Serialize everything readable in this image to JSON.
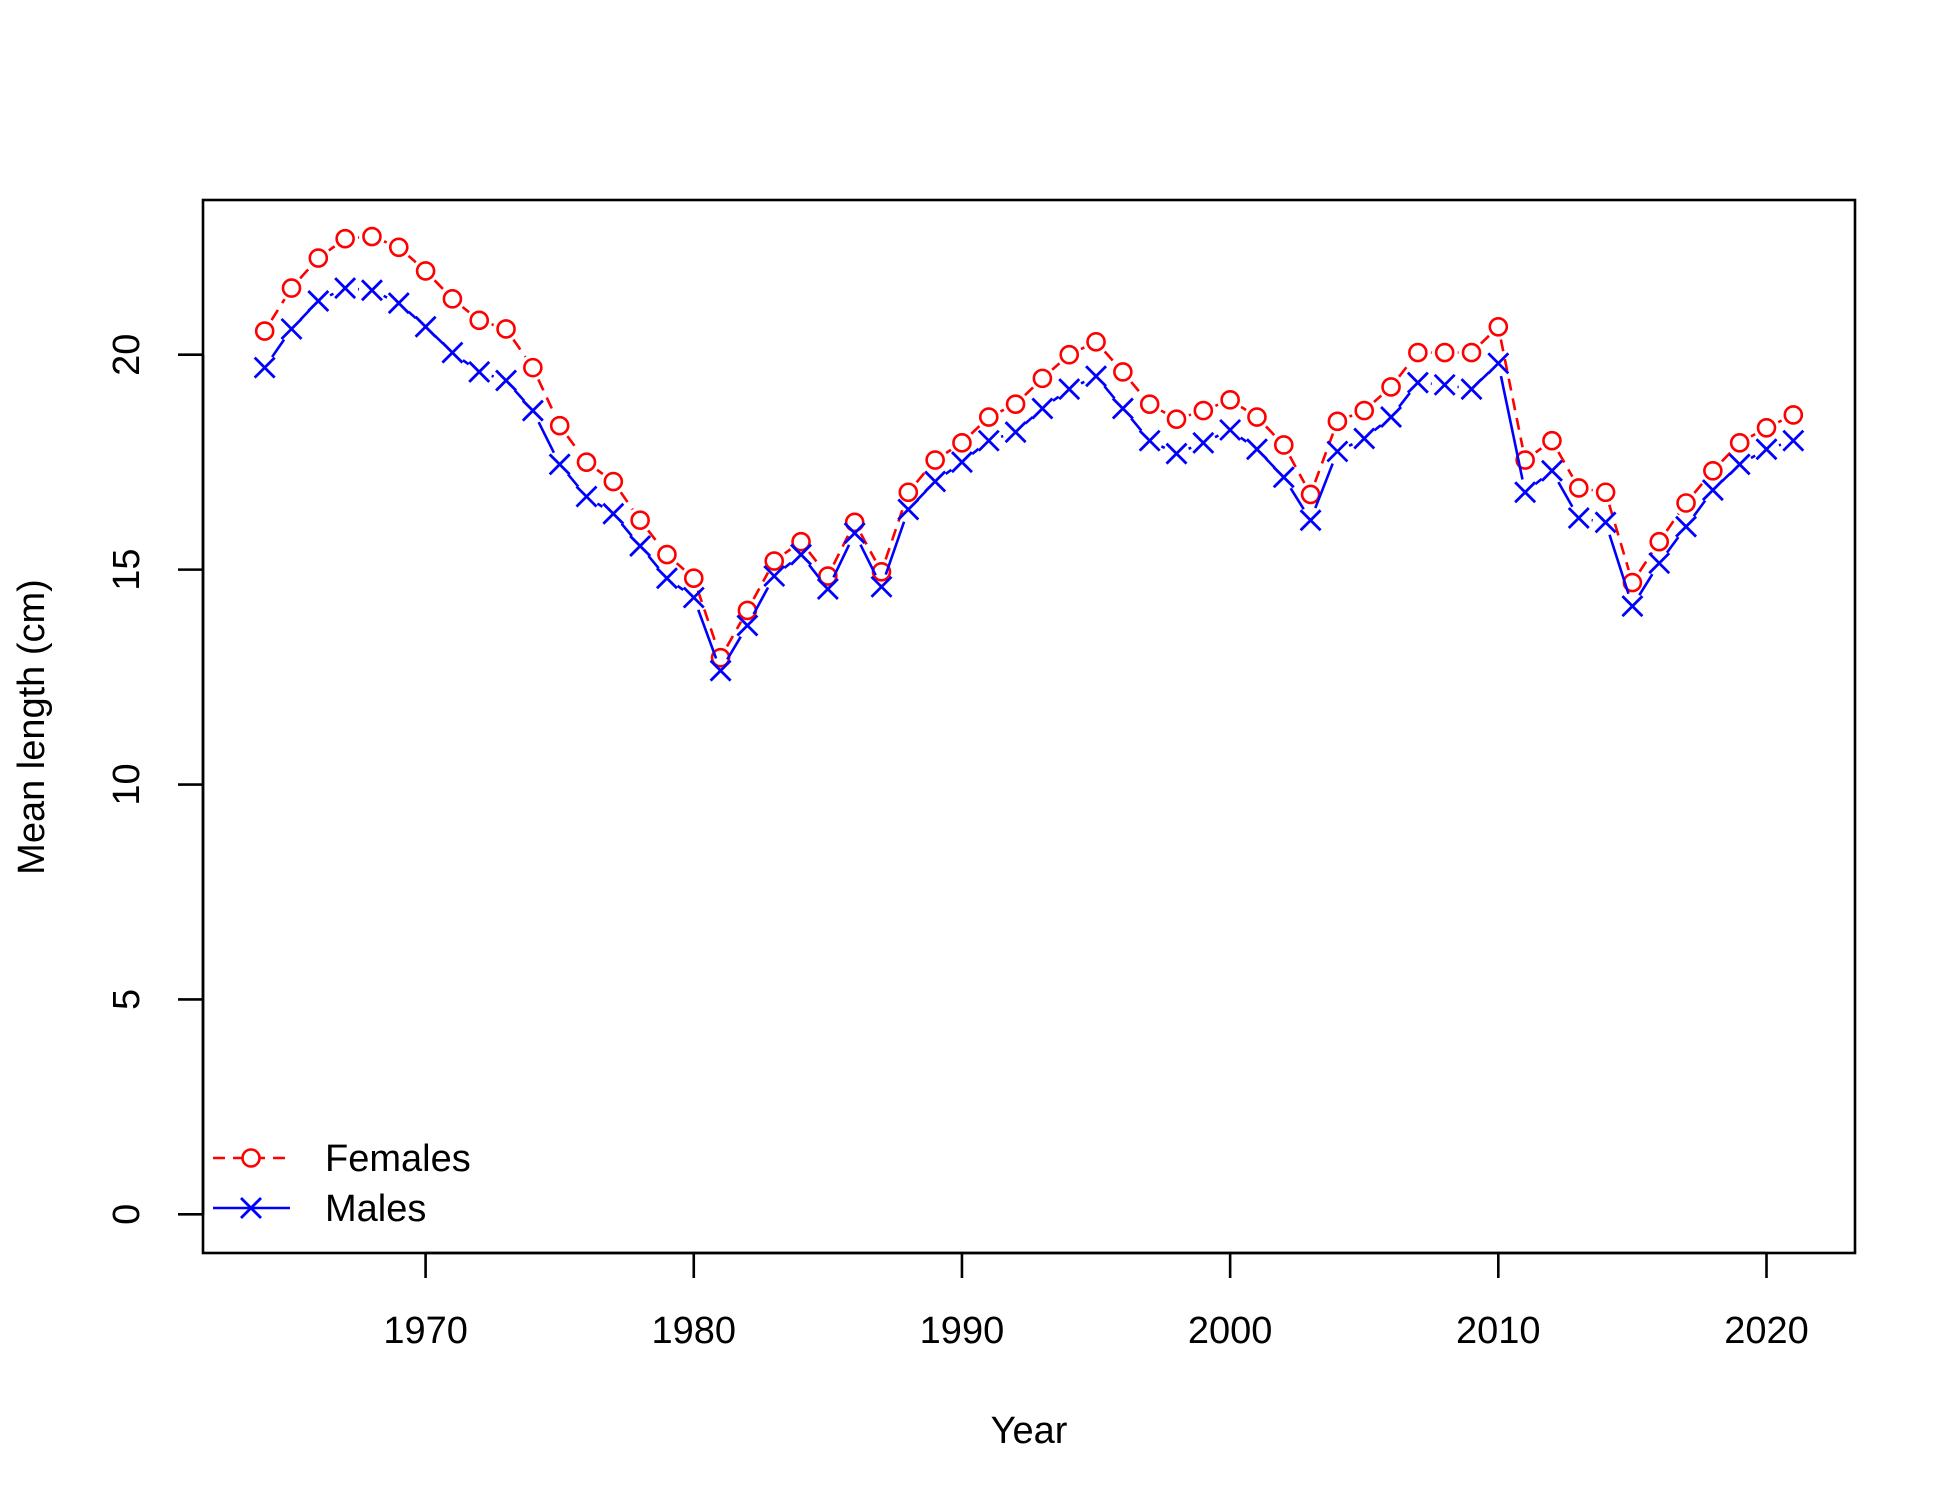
{
  "chart_data": {
    "type": "line",
    "xlabel": "Year",
    "ylabel": "Mean length (cm)",
    "xlim": [
      1961.7,
      2023.3
    ],
    "ylim": [
      -0.9,
      23.6
    ],
    "x_ticks": [
      1970,
      1980,
      1990,
      2000,
      2010,
      2020
    ],
    "y_ticks": [
      0,
      5,
      10,
      15,
      20
    ],
    "legend_position": "bottom-left",
    "x": [
      1964,
      1965,
      1966,
      1967,
      1968,
      1969,
      1970,
      1971,
      1972,
      1973,
      1974,
      1975,
      1976,
      1977,
      1978,
      1979,
      1980,
      1981,
      1982,
      1983,
      1984,
      1985,
      1986,
      1987,
      1988,
      1989,
      1990,
      1991,
      1992,
      1993,
      1994,
      1995,
      1996,
      1997,
      1998,
      1999,
      2000,
      2001,
      2002,
      2003,
      2004,
      2005,
      2006,
      2007,
      2008,
      2009,
      2010,
      2011,
      2012,
      2013,
      2014,
      2015,
      2016,
      2017,
      2018,
      2019,
      2020,
      2021
    ],
    "series": [
      {
        "name": "Females",
        "color": "#ff0000",
        "line": "dashed",
        "marker": "circle",
        "values": [
          20.55,
          21.55,
          22.25,
          22.7,
          22.75,
          22.5,
          21.95,
          21.3,
          20.8,
          20.6,
          19.7,
          18.35,
          17.5,
          17.05,
          16.15,
          15.35,
          14.8,
          12.95,
          14.05,
          15.2,
          15.65,
          14.85,
          16.1,
          14.95,
          16.8,
          17.55,
          17.95,
          18.55,
          18.85,
          19.45,
          20.0,
          20.3,
          19.6,
          18.85,
          18.5,
          18.7,
          18.95,
          18.55,
          17.9,
          16.75,
          18.45,
          18.7,
          19.25,
          20.05,
          20.05,
          20.05,
          20.65,
          17.55,
          18.0,
          16.9,
          16.8,
          14.7,
          15.65,
          16.55,
          17.3,
          17.95,
          18.3,
          18.6
        ]
      },
      {
        "name": "Males",
        "color": "#0000ff",
        "line": "solid",
        "marker": "x",
        "values": [
          19.7,
          20.6,
          21.25,
          21.55,
          21.5,
          21.2,
          20.65,
          20.05,
          19.6,
          19.4,
          18.7,
          17.45,
          16.7,
          16.3,
          15.55,
          14.8,
          14.35,
          12.65,
          13.7,
          14.85,
          15.35,
          14.55,
          15.85,
          14.6,
          16.4,
          17.05,
          17.5,
          18.0,
          18.2,
          18.75,
          19.2,
          19.5,
          18.75,
          18.0,
          17.7,
          17.95,
          18.25,
          17.8,
          17.15,
          16.15,
          17.75,
          18.05,
          18.55,
          19.35,
          19.3,
          19.2,
          19.8,
          16.8,
          17.3,
          16.2,
          16.1,
          14.15,
          15.15,
          16.0,
          16.85,
          17.45,
          17.8,
          18.0
        ]
      }
    ]
  }
}
